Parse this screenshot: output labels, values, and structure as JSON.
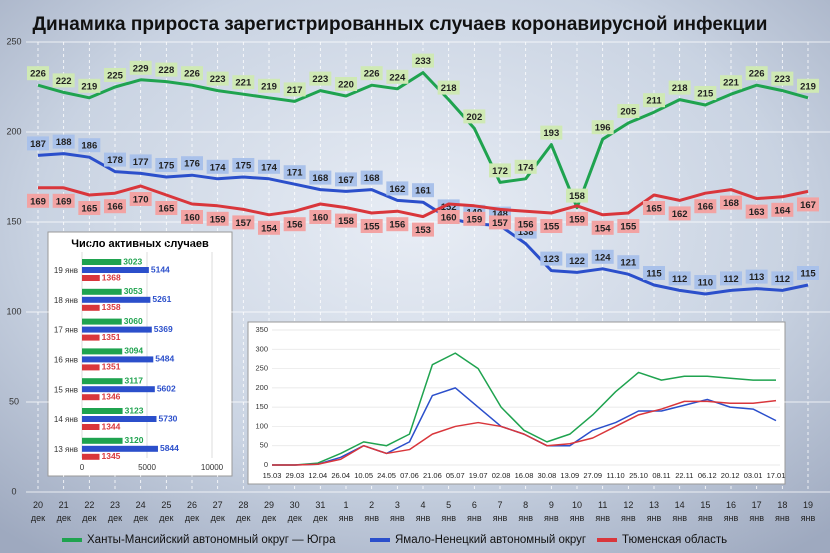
{
  "chart_data": [
    {
      "type": "line",
      "title": "Динамика прироста зарегистрированных случаев коронавирусной инфекции",
      "categories": [
        "20 дек",
        "21 дек",
        "22 дек",
        "23 дек",
        "24 дек",
        "25 дек",
        "26 дек",
        "27 дек",
        "28 дек",
        "29 дек",
        "30 дек",
        "31 дек",
        "1 янв",
        "2 янв",
        "3 янв",
        "4 янв",
        "5 янв",
        "6 янв",
        "7 янв",
        "8 янв",
        "9 янв",
        "10 янв",
        "11 янв",
        "12 янв",
        "13 янв",
        "14 янв",
        "15 янв",
        "16 янв",
        "17 янв",
        "18 янв",
        "19 янв"
      ],
      "series": [
        {
          "name": "Ханты-Мансийский автономный округ — Югра",
          "color": "#1fa34f",
          "label_color": "#cfe9b4",
          "values": [
            226,
            222,
            219,
            225,
            229,
            228,
            226,
            223,
            221,
            219,
            217,
            223,
            220,
            226,
            224,
            233,
            218,
            202,
            172,
            174,
            193,
            158,
            196,
            205,
            211,
            218,
            215,
            221,
            226,
            223,
            219
          ]
        },
        {
          "name": "Ямало-Ненецкий автономный округ",
          "color": "#2b4fcb",
          "label_color": "#a9c1ea",
          "values": [
            187,
            188,
            186,
            178,
            177,
            175,
            176,
            174,
            175,
            174,
            171,
            168,
            167,
            168,
            162,
            161,
            152,
            149,
            148,
            138,
            123,
            122,
            124,
            121,
            115,
            112,
            110,
            112,
            113,
            112,
            115
          ]
        },
        {
          "name": "Тюменская область",
          "color": "#d9363b",
          "label_color": "#f2a3a3",
          "values": [
            169,
            169,
            165,
            166,
            170,
            165,
            160,
            159,
            157,
            154,
            156,
            160,
            158,
            155,
            156,
            153,
            160,
            159,
            157,
            156,
            155,
            159,
            154,
            155,
            165,
            162,
            166,
            168,
            163,
            164,
            167
          ]
        }
      ],
      "ylim": [
        0,
        250
      ],
      "yticks": [
        0,
        50,
        100,
        150,
        200,
        250
      ],
      "grid": true
    },
    {
      "type": "hbar",
      "title": "Число активных случаев",
      "categories": [
        "19 янв",
        "18 янв",
        "17 янв",
        "16 янв",
        "15 янв",
        "14 янв",
        "13 янв"
      ],
      "series": [
        {
          "color": "#1fa34f",
          "values": [
            3023,
            3053,
            3060,
            3094,
            3117,
            3123,
            3120
          ]
        },
        {
          "color": "#2b4fcb",
          "values": [
            5144,
            5261,
            5369,
            5484,
            5602,
            5730,
            5844
          ]
        },
        {
          "color": "#d9363b",
          "values": [
            1368,
            1358,
            1351,
            1351,
            1346,
            1344,
            1345
          ]
        }
      ],
      "xlim": [
        0,
        10000
      ],
      "xticks": [
        0,
        5000,
        10000
      ]
    },
    {
      "type": "line",
      "categories": [
        "15.03",
        "29.03",
        "12.04",
        "26.04",
        "10.05",
        "24.05",
        "07.06",
        "21.06",
        "05.07",
        "19.07",
        "02.08",
        "16.08",
        "30.08",
        "13.09",
        "27.09",
        "11.10",
        "25.10",
        "08.11",
        "22.11",
        "06.12",
        "20.12",
        "03.01",
        "17.01"
      ],
      "series": [
        {
          "color": "#1fa34f",
          "values": [
            0,
            0,
            5,
            30,
            60,
            50,
            80,
            260,
            290,
            250,
            150,
            90,
            60,
            80,
            130,
            190,
            240,
            220,
            230,
            230,
            225,
            220,
            220
          ]
        },
        {
          "color": "#2b4fcb",
          "values": [
            0,
            0,
            2,
            20,
            50,
            30,
            60,
            180,
            200,
            150,
            100,
            80,
            50,
            50,
            90,
            110,
            140,
            140,
            155,
            170,
            150,
            145,
            115
          ]
        },
        {
          "color": "#d9363b",
          "values": [
            0,
            0,
            2,
            15,
            50,
            30,
            40,
            80,
            100,
            110,
            100,
            80,
            50,
            55,
            70,
            100,
            130,
            145,
            165,
            165,
            160,
            160,
            167
          ]
        }
      ],
      "ylim": [
        0,
        350
      ],
      "yticks": [
        0,
        50,
        100,
        150,
        200,
        250,
        300,
        350
      ],
      "grid": true
    }
  ]
}
